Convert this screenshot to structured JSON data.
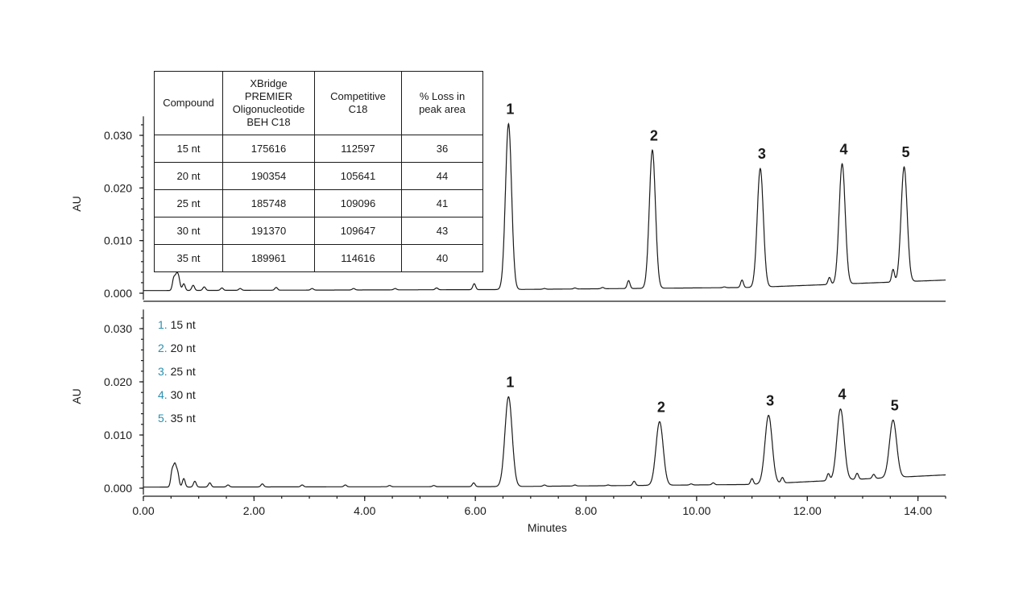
{
  "chart_data": [
    {
      "type": "line",
      "panel": "top",
      "ylabel": "AU",
      "xlabel": "",
      "xlim": [
        0,
        14.5
      ],
      "ylim": [
        0,
        0.033
      ],
      "yticks": [
        "0.030",
        "0.020",
        "0.010",
        "0.000"
      ],
      "baseline": {
        "start": 0.0005,
        "after_peak1": 0.0007,
        "end": 0.0025
      },
      "peaks": [
        {
          "label": "1",
          "x": 6.6,
          "y": 0.0322
        },
        {
          "label": "2",
          "x": 9.2,
          "y": 0.0272
        },
        {
          "label": "3",
          "x": 11.15,
          "y": 0.0237
        },
        {
          "label": "4",
          "x": 12.63,
          "y": 0.0246
        },
        {
          "label": "5",
          "x": 13.75,
          "y": 0.024
        }
      ],
      "minor_peaks": [
        {
          "x": 0.55,
          "y": 0.0028
        },
        {
          "x": 0.6,
          "y": 0.003
        },
        {
          "x": 0.64,
          "y": 0.0026
        },
        {
          "x": 0.73,
          "y": 0.0018
        },
        {
          "x": 0.9,
          "y": 0.0015
        },
        {
          "x": 1.1,
          "y": 0.0012
        },
        {
          "x": 1.42,
          "y": 0.001
        },
        {
          "x": 1.75,
          "y": 0.0009
        },
        {
          "x": 2.4,
          "y": 0.0011
        },
        {
          "x": 3.05,
          "y": 0.0009
        },
        {
          "x": 3.8,
          "y": 0.0009
        },
        {
          "x": 4.55,
          "y": 0.0009
        },
        {
          "x": 5.3,
          "y": 0.001
        },
        {
          "x": 5.98,
          "y": 0.0018
        },
        {
          "x": 7.25,
          "y": 0.0009
        },
        {
          "x": 7.8,
          "y": 0.001
        },
        {
          "x": 8.3,
          "y": 0.0011
        },
        {
          "x": 8.77,
          "y": 0.0024
        },
        {
          "x": 9.7,
          "y": 0.0009
        },
        {
          "x": 10.1,
          "y": 0.001
        },
        {
          "x": 10.5,
          "y": 0.0012
        },
        {
          "x": 10.82,
          "y": 0.0025
        },
        {
          "x": 11.6,
          "y": 0.0012
        },
        {
          "x": 12.1,
          "y": 0.0015
        },
        {
          "x": 12.4,
          "y": 0.003
        },
        {
          "x": 13.55,
          "y": 0.0045
        }
      ],
      "table": {
        "headers": [
          [
            "Compound"
          ],
          [
            "XBridge",
            "PREMIER",
            "Oligonucleotide",
            "BEH C18"
          ],
          [
            "Competitive",
            "C18"
          ],
          [
            "% Loss in",
            "peak area"
          ]
        ],
        "rows": [
          [
            "15 nt",
            "175616",
            "112597",
            "36"
          ],
          [
            "20 nt",
            "190354",
            "105641",
            "44"
          ],
          [
            "25 nt",
            "185748",
            "109096",
            "41"
          ],
          [
            "30 nt",
            "191370",
            "109647",
            "43"
          ],
          [
            "35 nt",
            "189961",
            "114616",
            "40"
          ]
        ]
      }
    },
    {
      "type": "line",
      "panel": "bottom",
      "ylabel": "AU",
      "xlabel": "Minutes",
      "xlim": [
        0,
        14.5
      ],
      "ylim": [
        0,
        0.033
      ],
      "yticks": [
        "0.030",
        "0.020",
        "0.010",
        "0.000"
      ],
      "xticks": [
        "0.00",
        "2.00",
        "4.00",
        "6.00",
        "8.00",
        "10.00",
        "12.00",
        "14.00"
      ],
      "baseline": {
        "start": 0.0002,
        "after_peak1": 0.0003,
        "end": 0.0025
      },
      "peaks": [
        {
          "label": "1",
          "x": 6.6,
          "y": 0.0172
        },
        {
          "label": "2",
          "x": 9.33,
          "y": 0.0125
        },
        {
          "label": "3",
          "x": 11.3,
          "y": 0.0137
        },
        {
          "label": "4",
          "x": 12.6,
          "y": 0.0149
        },
        {
          "label": "5",
          "x": 13.55,
          "y": 0.0128
        }
      ],
      "minor_peaks": [
        {
          "x": 0.52,
          "y": 0.0032
        },
        {
          "x": 0.57,
          "y": 0.004
        },
        {
          "x": 0.62,
          "y": 0.0028
        },
        {
          "x": 0.73,
          "y": 0.0018
        },
        {
          "x": 0.93,
          "y": 0.0013
        },
        {
          "x": 1.2,
          "y": 0.001
        },
        {
          "x": 1.53,
          "y": 0.0006
        },
        {
          "x": 2.15,
          "y": 0.0008
        },
        {
          "x": 2.87,
          "y": 0.0006
        },
        {
          "x": 3.65,
          "y": 0.0006
        },
        {
          "x": 4.45,
          "y": 0.0005
        },
        {
          "x": 5.25,
          "y": 0.0005
        },
        {
          "x": 5.97,
          "y": 0.001
        },
        {
          "x": 7.25,
          "y": 0.0006
        },
        {
          "x": 7.8,
          "y": 0.0006
        },
        {
          "x": 8.4,
          "y": 0.0006
        },
        {
          "x": 8.87,
          "y": 0.0013
        },
        {
          "x": 9.9,
          "y": 0.0008
        },
        {
          "x": 10.3,
          "y": 0.001
        },
        {
          "x": 11.0,
          "y": 0.0018
        },
        {
          "x": 11.55,
          "y": 0.002
        },
        {
          "x": 12.38,
          "y": 0.0027
        },
        {
          "x": 12.9,
          "y": 0.0028
        },
        {
          "x": 13.2,
          "y": 0.0026
        }
      ],
      "legend": [
        {
          "num": "1.",
          "label": "15 nt"
        },
        {
          "num": "2.",
          "label": "20 nt"
        },
        {
          "num": "3.",
          "label": "25 nt"
        },
        {
          "num": "4.",
          "label": "30 nt"
        },
        {
          "num": "5.",
          "label": "35 nt"
        }
      ]
    }
  ],
  "colors": {
    "trace": "#1a1a1a",
    "legend_number": "#2a8fb0"
  }
}
